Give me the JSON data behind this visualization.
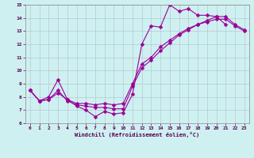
{
  "xlabel": "Windchill (Refroidissement éolien,°C)",
  "bg_color": "#cff0f0",
  "line_color": "#990099",
  "grid_color": "#aabbcc",
  "xlim": [
    -0.5,
    23.5
  ],
  "ylim": [
    6,
    15
  ],
  "xticks": [
    0,
    1,
    2,
    3,
    4,
    5,
    6,
    7,
    8,
    9,
    10,
    11,
    12,
    13,
    14,
    15,
    16,
    17,
    18,
    19,
    20,
    21,
    22,
    23
  ],
  "yticks": [
    6,
    7,
    8,
    9,
    10,
    11,
    12,
    13,
    14,
    15
  ],
  "series": [
    {
      "x": [
        0,
        1,
        2,
        3,
        4,
        5,
        6,
        7,
        8,
        9,
        10,
        11,
        12,
        13,
        14,
        15,
        16,
        17,
        18,
        19,
        20,
        21
      ],
      "y": [
        8.5,
        7.7,
        8.0,
        9.3,
        7.8,
        7.3,
        7.0,
        6.5,
        6.9,
        6.7,
        6.8,
        8.2,
        12.0,
        13.4,
        13.3,
        15.0,
        14.5,
        14.7,
        14.2,
        14.2,
        14.1,
        13.5
      ]
    },
    {
      "x": [
        0,
        1,
        2,
        3,
        4,
        5,
        6,
        7,
        8,
        9,
        10,
        11,
        12,
        13,
        14,
        15,
        16,
        17,
        18,
        19,
        20,
        21,
        22,
        23
      ],
      "y": [
        8.5,
        7.7,
        7.8,
        8.5,
        7.7,
        7.4,
        7.3,
        7.2,
        7.2,
        7.1,
        7.1,
        8.8,
        10.2,
        10.8,
        11.5,
        12.1,
        12.7,
        13.1,
        13.5,
        13.8,
        14.1,
        14.1,
        13.5,
        13.1
      ]
    },
    {
      "x": [
        0,
        1,
        2,
        3,
        4,
        5,
        6,
        7,
        8,
        9,
        10,
        11,
        12,
        13,
        14,
        15,
        16,
        17,
        18,
        19,
        20,
        21,
        22,
        23
      ],
      "y": [
        8.5,
        7.7,
        7.8,
        8.3,
        7.8,
        7.5,
        7.5,
        7.4,
        7.5,
        7.4,
        7.5,
        9.0,
        10.5,
        11.0,
        11.8,
        12.3,
        12.8,
        13.2,
        13.5,
        13.7,
        13.9,
        13.9,
        13.4,
        13.0
      ]
    }
  ],
  "marker": "D",
  "markersize": 2.5,
  "linewidth": 0.8
}
